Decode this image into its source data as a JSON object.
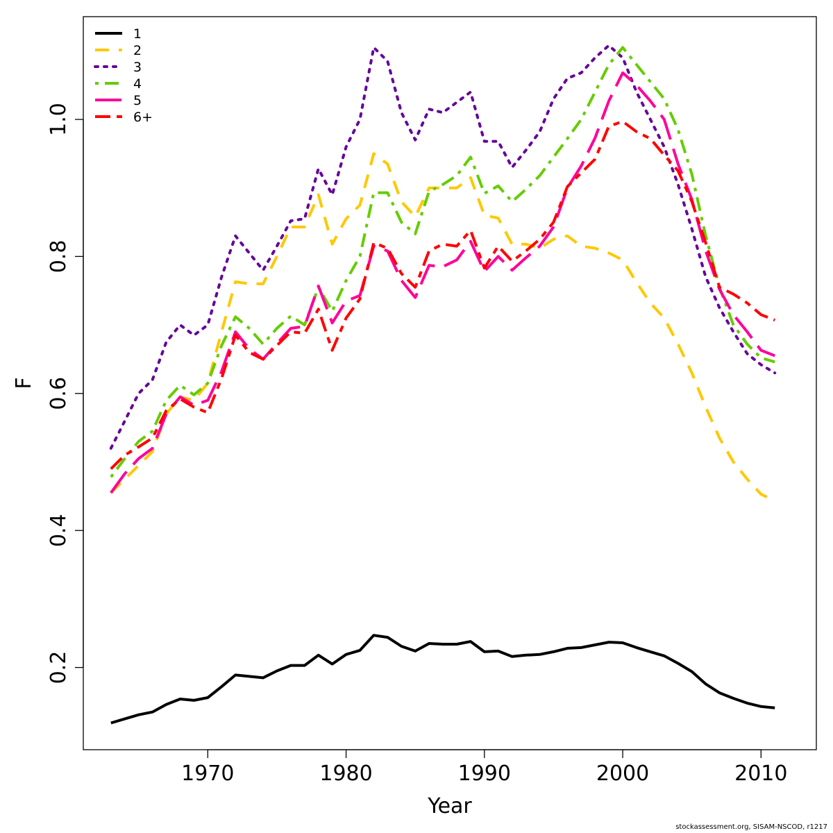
{
  "chart_data": {
    "type": "line",
    "title": "",
    "xlabel": "Year",
    "ylabel": "F",
    "xlim": [
      1961,
      2014
    ],
    "ylim": [
      0.08,
      1.15
    ],
    "xticks": [
      1970,
      1980,
      1990,
      2000,
      2010
    ],
    "yticks": [
      0.2,
      0.4,
      0.6,
      0.8,
      1.0
    ],
    "ytick_labels": [
      "0.2",
      "0.4",
      "0.6",
      "0.8",
      "1.0"
    ],
    "legend_position": "top-left",
    "x": [
      1963,
      1964,
      1965,
      1966,
      1967,
      1968,
      1969,
      1970,
      1971,
      1972,
      1973,
      1974,
      1975,
      1976,
      1977,
      1978,
      1979,
      1980,
      1981,
      1982,
      1983,
      1984,
      1985,
      1986,
      1987,
      1988,
      1989,
      1990,
      1991,
      1992,
      1993,
      1994,
      1995,
      1996,
      1997,
      1998,
      1999,
      2000,
      2001,
      2002,
      2003,
      2004,
      2005,
      2006,
      2007,
      2008,
      2009,
      2010,
      2011
    ],
    "series": [
      {
        "name": "1",
        "color": "#000000",
        "dash": "solid",
        "values": [
          0.119,
          0.125,
          0.131,
          0.135,
          0.146,
          0.154,
          0.152,
          0.156,
          0.172,
          0.189,
          0.187,
          0.185,
          0.195,
          0.203,
          0.203,
          0.218,
          0.205,
          0.219,
          0.225,
          0.247,
          0.244,
          0.231,
          0.224,
          0.235,
          0.234,
          0.234,
          0.238,
          0.223,
          0.224,
          0.216,
          0.218,
          0.219,
          0.223,
          0.228,
          0.229,
          0.233,
          0.237,
          0.236,
          0.229,
          0.223,
          0.217,
          0.206,
          0.194,
          0.176,
          0.163,
          0.155,
          0.148,
          0.143,
          0.141
        ]
      },
      {
        "name": "2",
        "color": "#ffc800",
        "dash": "dash",
        "values": [
          0.455,
          0.475,
          0.495,
          0.515,
          0.57,
          0.595,
          0.59,
          0.615,
          0.69,
          0.763,
          0.76,
          0.76,
          0.8,
          0.843,
          0.843,
          0.89,
          0.818,
          0.855,
          0.875,
          0.95,
          0.935,
          0.88,
          0.858,
          0.9,
          0.9,
          0.9,
          0.915,
          0.86,
          0.856,
          0.818,
          0.818,
          0.812,
          0.825,
          0.83,
          0.815,
          0.812,
          0.805,
          0.795,
          0.762,
          0.732,
          0.71,
          0.672,
          0.63,
          0.58,
          0.535,
          0.5,
          0.475,
          0.453,
          0.443
        ]
      },
      {
        "name": "3",
        "color": "#660099",
        "dash": "dot",
        "values": [
          0.52,
          0.56,
          0.6,
          0.62,
          0.675,
          0.7,
          0.685,
          0.7,
          0.77,
          0.83,
          0.805,
          0.78,
          0.815,
          0.852,
          0.855,
          0.928,
          0.89,
          0.96,
          1.0,
          1.105,
          1.085,
          1.01,
          0.97,
          1.015,
          1.01,
          1.025,
          1.04,
          0.968,
          0.968,
          0.93,
          0.955,
          0.982,
          1.03,
          1.06,
          1.068,
          1.09,
          1.108,
          1.09,
          1.04,
          1.0,
          0.96,
          0.905,
          0.84,
          0.77,
          0.725,
          0.69,
          0.658,
          0.642,
          0.63
        ]
      },
      {
        "name": "4",
        "color": "#66cc00",
        "dash": "dashdot",
        "values": [
          0.478,
          0.505,
          0.53,
          0.545,
          0.59,
          0.612,
          0.598,
          0.615,
          0.67,
          0.712,
          0.695,
          0.672,
          0.695,
          0.713,
          0.7,
          0.755,
          0.72,
          0.765,
          0.8,
          0.893,
          0.893,
          0.85,
          0.833,
          0.895,
          0.905,
          0.918,
          0.945,
          0.892,
          0.903,
          0.88,
          0.898,
          0.918,
          0.945,
          0.972,
          1.0,
          1.04,
          1.08,
          1.105,
          1.08,
          1.055,
          1.03,
          0.985,
          0.92,
          0.83,
          0.755,
          0.7,
          0.672,
          0.652,
          0.646
        ]
      },
      {
        "name": "5",
        "color": "#ff0099",
        "dash": "longdash",
        "values": [
          0.455,
          0.483,
          0.505,
          0.52,
          0.57,
          0.595,
          0.583,
          0.59,
          0.632,
          0.69,
          0.665,
          0.65,
          0.673,
          0.695,
          0.698,
          0.757,
          0.703,
          0.735,
          0.743,
          0.815,
          0.808,
          0.765,
          0.74,
          0.787,
          0.785,
          0.795,
          0.822,
          0.778,
          0.8,
          0.78,
          0.798,
          0.815,
          0.843,
          0.9,
          0.932,
          0.973,
          1.027,
          1.068,
          1.05,
          1.027,
          1.0,
          0.935,
          0.883,
          0.808,
          0.752,
          0.715,
          0.69,
          0.663,
          0.655
        ]
      },
      {
        "name": "6+",
        "color": "#ff0000",
        "dash": "twodash",
        "values": [
          0.49,
          0.51,
          0.522,
          0.535,
          0.575,
          0.592,
          0.58,
          0.572,
          0.622,
          0.685,
          0.66,
          0.65,
          0.67,
          0.69,
          0.688,
          0.723,
          0.663,
          0.71,
          0.738,
          0.82,
          0.812,
          0.775,
          0.755,
          0.808,
          0.818,
          0.815,
          0.838,
          0.783,
          0.815,
          0.793,
          0.808,
          0.825,
          0.85,
          0.902,
          0.922,
          0.942,
          0.99,
          0.997,
          0.982,
          0.972,
          0.948,
          0.925,
          0.88,
          0.82,
          0.755,
          0.745,
          0.732,
          0.715,
          0.707
        ]
      }
    ]
  },
  "footer": "stockassessment.org, SISAM-NSCOD, r1217"
}
